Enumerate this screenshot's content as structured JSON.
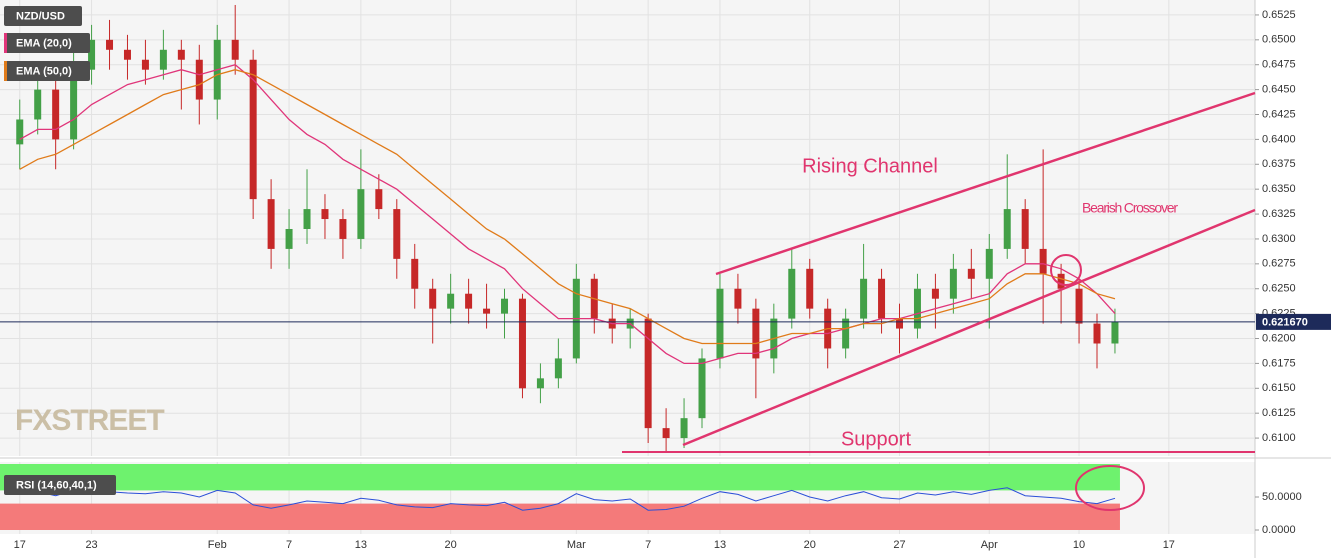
{
  "chart_data": [
    {
      "type": "candlestick",
      "title": "NZD/USD",
      "watermark": "FXSTREET",
      "annotations": [
        "Rising Channel",
        "Bearish Crossover",
        "Support"
      ],
      "up_color": "#43a047",
      "down_color": "#c62828",
      "grid": true,
      "x": [
        0,
        1,
        2,
        3,
        4,
        5,
        6,
        7,
        8,
        9,
        10,
        11,
        12,
        13,
        14,
        15,
        16,
        17,
        18,
        19,
        20,
        21,
        22,
        23,
        24,
        25,
        26,
        27,
        28,
        29,
        30,
        31,
        32,
        33,
        34,
        35,
        36,
        37,
        38,
        39,
        40,
        41,
        42,
        43,
        44,
        45,
        46,
        47,
        48,
        49,
        50,
        51,
        52,
        53,
        54,
        55,
        56,
        57,
        58,
        59,
        60,
        61
      ],
      "open": [
        0.6395,
        0.642,
        0.645,
        0.64,
        0.647,
        0.65,
        0.649,
        0.648,
        0.647,
        0.649,
        0.648,
        0.644,
        0.65,
        0.648,
        0.634,
        0.629,
        0.631,
        0.633,
        0.632,
        0.63,
        0.635,
        0.633,
        0.628,
        0.625,
        0.623,
        0.6245,
        0.623,
        0.6225,
        0.624,
        0.615,
        0.616,
        0.618,
        0.626,
        0.622,
        0.621,
        0.622,
        0.611,
        0.61,
        0.612,
        0.618,
        0.625,
        0.623,
        0.618,
        0.622,
        0.627,
        0.623,
        0.619,
        0.622,
        0.626,
        0.622,
        0.621,
        0.625,
        0.624,
        0.627,
        0.626,
        0.629,
        0.633,
        0.629,
        0.6265,
        0.625,
        0.6215,
        0.6195
      ],
      "high": [
        0.644,
        0.647,
        0.6465,
        0.649,
        0.6515,
        0.652,
        0.6505,
        0.65,
        0.651,
        0.65,
        0.6495,
        0.6515,
        0.6535,
        0.649,
        0.636,
        0.633,
        0.637,
        0.6345,
        0.633,
        0.639,
        0.6365,
        0.634,
        0.6295,
        0.626,
        0.6265,
        0.626,
        0.6255,
        0.625,
        0.6245,
        0.6175,
        0.62,
        0.6275,
        0.6265,
        0.6235,
        0.623,
        0.6225,
        0.613,
        0.614,
        0.619,
        0.6265,
        0.6265,
        0.624,
        0.6235,
        0.629,
        0.628,
        0.624,
        0.623,
        0.6295,
        0.627,
        0.6235,
        0.6265,
        0.6265,
        0.6285,
        0.629,
        0.6305,
        0.6385,
        0.634,
        0.639,
        0.6275,
        0.626,
        0.6225,
        0.623
      ],
      "low": [
        0.637,
        0.6405,
        0.637,
        0.639,
        0.6455,
        0.647,
        0.646,
        0.6455,
        0.646,
        0.643,
        0.6415,
        0.642,
        0.6465,
        0.632,
        0.627,
        0.627,
        0.6295,
        0.63,
        0.628,
        0.629,
        0.632,
        0.626,
        0.623,
        0.6195,
        0.6215,
        0.6215,
        0.621,
        0.62,
        0.614,
        0.6135,
        0.615,
        0.6175,
        0.6205,
        0.6195,
        0.619,
        0.6095,
        0.6085,
        0.609,
        0.611,
        0.617,
        0.6215,
        0.614,
        0.6165,
        0.621,
        0.622,
        0.617,
        0.618,
        0.621,
        0.6205,
        0.6185,
        0.62,
        0.621,
        0.6225,
        0.624,
        0.621,
        0.628,
        0.6275,
        0.6215,
        0.6215,
        0.6195,
        0.617,
        0.6185
      ],
      "close": [
        0.642,
        0.645,
        0.64,
        0.647,
        0.65,
        0.649,
        0.648,
        0.647,
        0.649,
        0.648,
        0.644,
        0.65,
        0.648,
        0.634,
        0.629,
        0.631,
        0.633,
        0.632,
        0.63,
        0.635,
        0.633,
        0.628,
        0.625,
        0.623,
        0.6245,
        0.623,
        0.6225,
        0.624,
        0.615,
        0.616,
        0.618,
        0.626,
        0.622,
        0.621,
        0.622,
        0.611,
        0.61,
        0.612,
        0.618,
        0.625,
        0.623,
        0.618,
        0.622,
        0.627,
        0.623,
        0.619,
        0.622,
        0.626,
        0.622,
        0.621,
        0.625,
        0.624,
        0.627,
        0.626,
        0.629,
        0.633,
        0.629,
        0.6265,
        0.625,
        0.6215,
        0.6195,
        0.6217
      ],
      "series": [
        {
          "name": "EMA (20,0)",
          "color": "#e0357a",
          "values": [
            0.64,
            0.641,
            0.641,
            0.642,
            0.6435,
            0.6445,
            0.6455,
            0.646,
            0.6465,
            0.647,
            0.6465,
            0.647,
            0.6475,
            0.646,
            0.644,
            0.642,
            0.6405,
            0.6395,
            0.638,
            0.637,
            0.636,
            0.635,
            0.6335,
            0.632,
            0.6305,
            0.629,
            0.628,
            0.627,
            0.625,
            0.6235,
            0.622,
            0.622,
            0.622,
            0.6215,
            0.6215,
            0.62,
            0.6185,
            0.6175,
            0.6175,
            0.618,
            0.6185,
            0.6185,
            0.619,
            0.62,
            0.6205,
            0.6205,
            0.621,
            0.6215,
            0.622,
            0.622,
            0.6225,
            0.623,
            0.6235,
            0.624,
            0.6245,
            0.6265,
            0.6275,
            0.6275,
            0.627,
            0.626,
            0.6245,
            0.6225
          ]
        },
        {
          "name": "EMA (50,0)",
          "color": "#e07b1a",
          "values": [
            0.637,
            0.638,
            0.6385,
            0.6395,
            0.6405,
            0.6415,
            0.6425,
            0.6435,
            0.6445,
            0.645,
            0.6455,
            0.6465,
            0.647,
            0.6465,
            0.6455,
            0.6445,
            0.6435,
            0.6425,
            0.6415,
            0.6405,
            0.6395,
            0.6385,
            0.637,
            0.6355,
            0.634,
            0.6325,
            0.631,
            0.63,
            0.6285,
            0.627,
            0.6255,
            0.6245,
            0.624,
            0.6235,
            0.623,
            0.622,
            0.621,
            0.62,
            0.6195,
            0.6195,
            0.6195,
            0.6195,
            0.62,
            0.6205,
            0.6205,
            0.621,
            0.621,
            0.6215,
            0.6215,
            0.622,
            0.622,
            0.6225,
            0.623,
            0.6235,
            0.624,
            0.6255,
            0.6265,
            0.6265,
            0.626,
            0.6255,
            0.6245,
            0.624
          ]
        }
      ],
      "last_price": {
        "value": 0.62167,
        "label": "0.621670"
      },
      "xlim": [
        -1.1,
        68.8
      ],
      "xticks": [
        {
          "value": 0,
          "label": "17"
        },
        {
          "value": 4,
          "label": "23"
        },
        {
          "value": 11,
          "label": "Feb"
        },
        {
          "value": 15,
          "label": "7"
        },
        {
          "value": 19,
          "label": "13"
        },
        {
          "value": 24,
          "label": "20"
        },
        {
          "value": 31,
          "label": "Mar"
        },
        {
          "value": 35,
          "label": "7"
        },
        {
          "value": 39,
          "label": "13"
        },
        {
          "value": 44,
          "label": "20"
        },
        {
          "value": 49,
          "label": "27"
        },
        {
          "value": 54,
          "label": "Apr"
        },
        {
          "value": 59,
          "label": "10"
        },
        {
          "value": 64,
          "label": "17"
        }
      ],
      "ylim": [
        0.6082,
        0.654
      ],
      "yticks": [
        0.6525,
        {
          "value": 0.65,
          "label": "0.6500"
        },
        0.6475,
        {
          "value": 0.645,
          "label": "0.6450"
        },
        0.6425,
        {
          "value": 0.64,
          "label": "0.6400"
        },
        0.6375,
        {
          "value": 0.635,
          "label": "0.6350"
        },
        0.6325,
        {
          "value": 0.63,
          "label": "0.6300"
        },
        0.6275,
        {
          "value": 0.625,
          "label": "0.6250"
        },
        0.6225,
        {
          "value": 0.62,
          "label": "0.6200"
        },
        0.6175,
        {
          "value": 0.615,
          "label": "0.6150"
        },
        0.6125,
        {
          "value": 0.61,
          "label": "0.6100"
        }
      ]
    },
    {
      "type": "line",
      "title": "RSI (14,60,40,1)",
      "upper_band": 60,
      "lower_band": 40,
      "upper_color": "#6ef26e",
      "lower_color": "#f47a7a",
      "series": [
        {
          "color": "#2b4fd8",
          "values": [
            55,
            58,
            52,
            60,
            62,
            58,
            56,
            55,
            58,
            56,
            50,
            60,
            56,
            38,
            33,
            38,
            44,
            42,
            40,
            48,
            45,
            38,
            35,
            34,
            40,
            38,
            37,
            42,
            30,
            33,
            40,
            55,
            46,
            44,
            47,
            30,
            31,
            36,
            48,
            58,
            54,
            44,
            52,
            60,
            50,
            44,
            52,
            58,
            49,
            47,
            56,
            53,
            58,
            54,
            60,
            64,
            52,
            50,
            48,
            43,
            40,
            48
          ]
        }
      ],
      "ylim": [
        0,
        100
      ],
      "yticks": [
        {
          "value": 50,
          "label": "50.0000"
        },
        {
          "value": 0,
          "label": "0.0000"
        }
      ]
    }
  ]
}
